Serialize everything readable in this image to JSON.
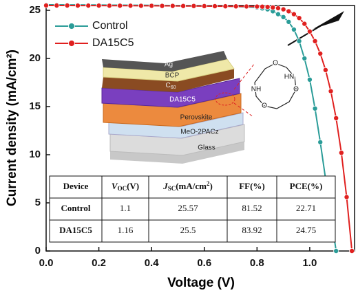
{
  "chart_data": {
    "type": "line",
    "x_label": "Voltage (V)",
    "y_label": "Current density (mA/cm²)",
    "xlim": [
      0,
      1.17
    ],
    "ylim": [
      0,
      25.5
    ],
    "xticks": [
      {
        "value": 0,
        "label": "0.0"
      },
      0.2,
      0.4,
      0.6,
      0.8,
      {
        "value": 1,
        "label": "1.0"
      }
    ],
    "yticks": [
      0,
      5,
      10,
      15,
      20,
      25
    ],
    "legend": "top-left",
    "x": [
      0,
      0.04,
      0.08,
      0.12,
      0.16,
      0.2,
      0.24,
      0.28,
      0.32,
      0.36,
      0.4,
      0.44,
      0.48,
      0.52,
      0.56,
      0.6,
      0.64,
      0.68,
      0.72,
      0.76,
      0.8,
      0.82,
      0.84,
      0.86,
      0.88,
      0.9,
      0.92,
      0.94,
      0.96,
      0.98,
      1.0,
      1.02,
      1.04,
      1.06,
      1.08,
      1.1,
      1.12,
      1.14,
      1.16
    ],
    "series": [
      {
        "name": "Control",
        "color": "#2a9c98",
        "values": [
          25.57,
          25.57,
          25.56,
          25.56,
          25.55,
          25.55,
          25.54,
          25.54,
          25.53,
          25.53,
          25.52,
          25.51,
          25.5,
          25.49,
          25.48,
          25.47,
          25.45,
          25.43,
          25.4,
          25.36,
          25.3,
          25.2,
          25.1,
          24.9,
          24.6,
          24.3,
          23.8,
          23.0,
          21.8,
          20.0,
          17.8,
          14.8,
          11.3,
          7.5,
          3.8,
          0,
          null,
          null,
          null
        ]
      },
      {
        "name": "DA15C5",
        "color": "#e0201f",
        "values": [
          25.5,
          25.5,
          25.5,
          25.49,
          25.49,
          25.49,
          25.48,
          25.48,
          25.48,
          25.47,
          25.47,
          25.46,
          25.46,
          25.45,
          25.45,
          25.44,
          25.43,
          25.42,
          25.41,
          25.4,
          25.39,
          25.38,
          25.35,
          25.3,
          25.22,
          25.1,
          24.9,
          24.6,
          24.2,
          23.6,
          22.8,
          21.8,
          20.5,
          18.8,
          16.6,
          13.8,
          10.2,
          5.6,
          0
        ]
      }
    ],
    "layers": [
      "Ag",
      "BCP",
      [
        "C",
        "60"
      ],
      "DA15C5",
      "Perovskite",
      "MeO-2PACz",
      "Glass"
    ],
    "molecule_labels": [
      "O",
      "O",
      "O",
      "NH",
      "HN"
    ],
    "table": {
      "header": [
        "Device",
        [
          "V",
          "OC",
          "(V)"
        ],
        [
          "J",
          "SC",
          "(mA/cm",
          "2",
          ")"
        ],
        "FF(%)",
        "PCE(%)"
      ],
      "rows": [
        [
          "Control",
          1.1,
          25.57,
          81.52,
          22.71
        ],
        [
          "DA15C5",
          1.16,
          25.5,
          83.92,
          24.75
        ]
      ]
    }
  }
}
